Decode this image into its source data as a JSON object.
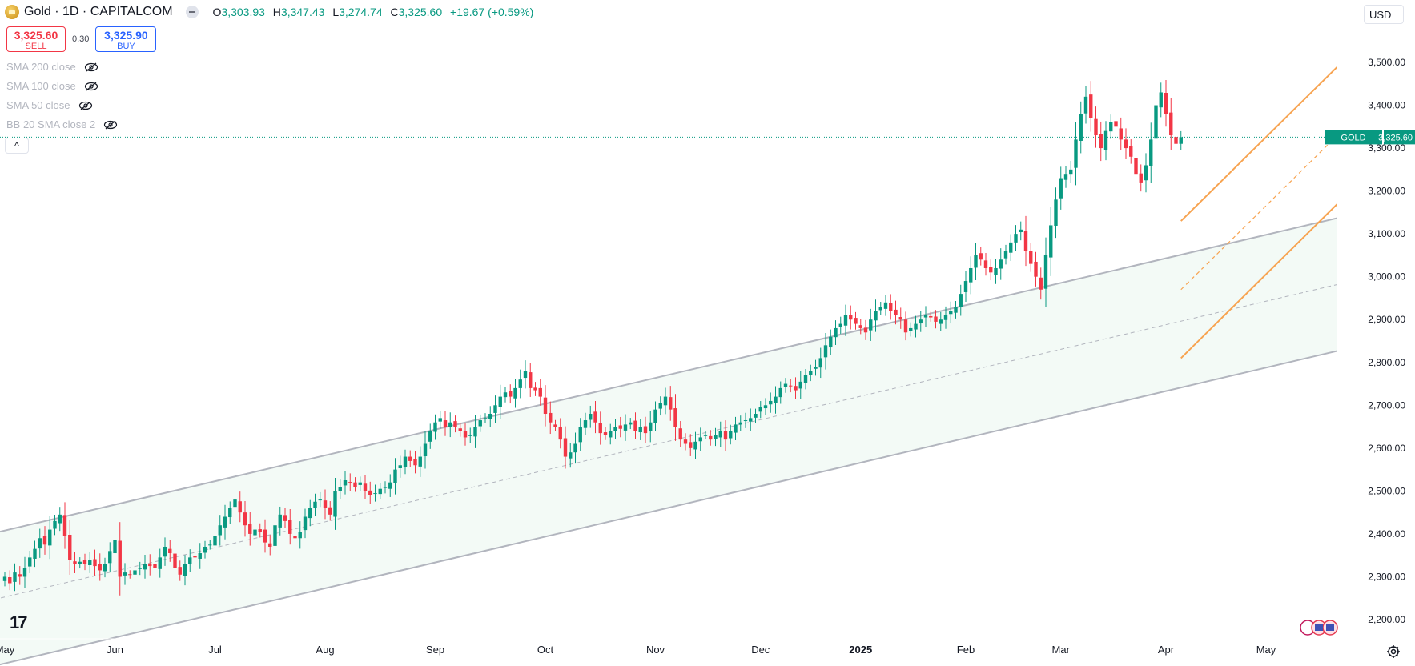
{
  "header": {
    "symbol": "Gold · 1D · CAPITALCOM",
    "ohlc": [
      {
        "label": "O",
        "value": "3,303.93"
      },
      {
        "label": "H",
        "value": "3,347.43"
      },
      {
        "label": "L",
        "value": "3,274.74"
      },
      {
        "label": "C",
        "value": "3,325.60"
      }
    ],
    "change": "+19.67 (+0.59%)"
  },
  "trade": {
    "sell_price": "3,325.60",
    "sell_label": "SELL",
    "spread": "0.30",
    "buy_price": "3,325.90",
    "buy_label": "BUY"
  },
  "indicators": [
    {
      "label": "SMA 200 close"
    },
    {
      "label": "SMA 100 close"
    },
    {
      "label": "SMA 50 close"
    },
    {
      "label": "BB 20 SMA close 2"
    }
  ],
  "currency": "USD",
  "expand_symbol": "^",
  "logo_text": "17",
  "colors": {
    "up": "#089981",
    "down": "#f23645",
    "channel": "#b2b5be",
    "channel_fill": "#f3faf6",
    "fork": "#f7a350",
    "price_line": "#089981"
  },
  "chart_data": {
    "type": "candlestick",
    "title": "Gold · 1D · CAPITALCOM",
    "ylim": [
      2150,
      3560
    ],
    "y_ticks": [
      "2,200.00",
      "2,300.00",
      "2,400.00",
      "2,500.00",
      "2,600.00",
      "2,700.00",
      "2,800.00",
      "2,900.00",
      "3,000.00",
      "3,100.00",
      "3,200.00",
      "3,300.00",
      "3,400.00",
      "3,500.00"
    ],
    "y_tick_values": [
      2200,
      2300,
      2400,
      2500,
      2600,
      2700,
      2800,
      2900,
      3000,
      3100,
      3200,
      3300,
      3400,
      3500
    ],
    "x_labels": [
      {
        "label": "May",
        "bold": false
      },
      {
        "label": "Jun",
        "bold": false
      },
      {
        "label": "Jul",
        "bold": false
      },
      {
        "label": "Aug",
        "bold": false
      },
      {
        "label": "Sep",
        "bold": false
      },
      {
        "label": "Oct",
        "bold": false
      },
      {
        "label": "Nov",
        "bold": false
      },
      {
        "label": "Dec",
        "bold": false
      },
      {
        "label": "2025",
        "bold": true
      },
      {
        "label": "Feb",
        "bold": false
      },
      {
        "label": "Mar",
        "bold": false
      },
      {
        "label": "Apr",
        "bold": false
      },
      {
        "label": "May",
        "bold": false
      }
    ],
    "x_label_bar_index": [
      0,
      22,
      42,
      64,
      86,
      108,
      130,
      151,
      171,
      192,
      211,
      232,
      252
    ],
    "last_price": {
      "symbol": "GOLD",
      "value": "3,325.60",
      "price": 3325.6
    },
    "closes": [
      2300,
      2285,
      2310,
      2300,
      2320,
      2345,
      2365,
      2390,
      2375,
      2410,
      2430,
      2445,
      2395,
      2340,
      2330,
      2335,
      2330,
      2340,
      2325,
      2315,
      2330,
      2360,
      2385,
      2300,
      2310,
      2305,
      2315,
      2320,
      2330,
      2325,
      2320,
      2345,
      2370,
      2355,
      2320,
      2305,
      2330,
      2345,
      2345,
      2355,
      2370,
      2375,
      2395,
      2420,
      2440,
      2460,
      2480,
      2450,
      2420,
      2400,
      2410,
      2405,
      2380,
      2370,
      2420,
      2445,
      2430,
      2400,
      2390,
      2405,
      2440,
      2460,
      2475,
      2480,
      2460,
      2445,
      2500,
      2510,
      2525,
      2520,
      2510,
      2520,
      2500,
      2490,
      2495,
      2505,
      2510,
      2520,
      2550,
      2560,
      2580,
      2570,
      2560,
      2580,
      2610,
      2640,
      2660,
      2670,
      2650,
      2660,
      2650,
      2640,
      2625,
      2630,
      2650,
      2665,
      2670,
      2680,
      2700,
      2720,
      2730,
      2720,
      2740,
      2760,
      2780,
      2740,
      2735,
      2720,
      2680,
      2660,
      2650,
      2620,
      2580,
      2590,
      2610,
      2650,
      2665,
      2680,
      2660,
      2635,
      2630,
      2640,
      2650,
      2645,
      2655,
      2660,
      2640,
      2650,
      2635,
      2660,
      2690,
      2705,
      2720,
      2690,
      2650,
      2620,
      2610,
      2600,
      2615,
      2625,
      2630,
      2620,
      2630,
      2640,
      2620,
      2640,
      2655,
      2660,
      2665,
      2670,
      2680,
      2695,
      2700,
      2710,
      2720,
      2740,
      2750,
      2745,
      2735,
      2755,
      2770,
      2780,
      2790,
      2810,
      2840,
      2860,
      2880,
      2890,
      2910,
      2900,
      2890,
      2880,
      2870,
      2900,
      2920,
      2930,
      2940,
      2920,
      2910,
      2900,
      2870,
      2880,
      2890,
      2900,
      2910,
      2905,
      2895,
      2900,
      2910,
      2920,
      2930,
      2960,
      2990,
      3020,
      3050,
      3040,
      3020,
      3010,
      3020,
      3040,
      3060,
      3080,
      3100,
      3110,
      3060,
      3030,
      3000,
      2970,
      3050,
      3120,
      3180,
      3230,
      3240,
      3250,
      3320,
      3380,
      3420,
      3370,
      3330,
      3300,
      3340,
      3360,
      3350,
      3320,
      3300,
      3280,
      3240,
      3220,
      3260,
      3320,
      3400,
      3430,
      3380,
      3330,
      3310,
      3325.6
    ],
    "pitchfork_anchor_index": 235,
    "overlays": [
      {
        "name": "Parallel channel",
        "type": "channel",
        "start": {
          "bar": -12,
          "price": 2220
        },
        "end": {
          "bar": 282,
          "price": 3025
        },
        "half_width": 155
      },
      {
        "name": "Pitchfork",
        "type": "pitchfork",
        "start": {
          "bar": 235,
          "price": 2970
        },
        "end": {
          "bar": 268,
          "price": 3350
        },
        "half_width": 160
      }
    ]
  }
}
